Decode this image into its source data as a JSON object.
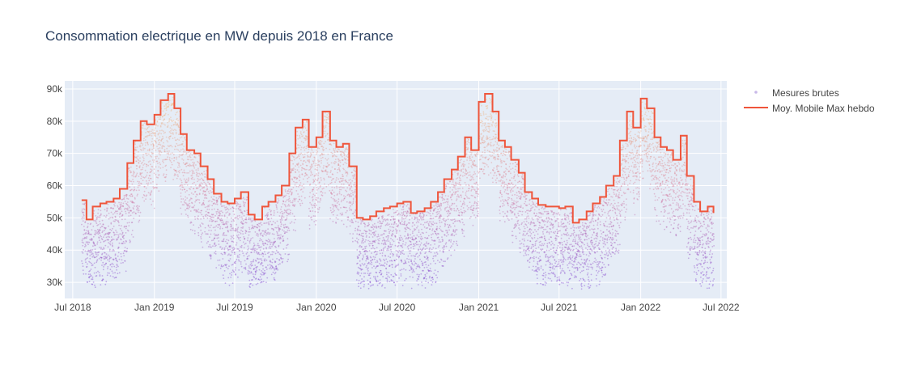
{
  "chart_data": {
    "type": "scatter",
    "title": "Consommation electrique en MW depuis 2018 en France",
    "xlabel": "",
    "ylabel": "",
    "xlim": [
      "2018-06-13",
      "2022-07-14"
    ],
    "ylim": [
      25000,
      92500
    ],
    "x_ticks": [
      {
        "date": "2018-07-01",
        "label": "Jul 2018"
      },
      {
        "date": "2019-01-01",
        "label": "Jan 2019"
      },
      {
        "date": "2019-07-01",
        "label": "Jul 2019"
      },
      {
        "date": "2020-01-01",
        "label": "Jan 2020"
      },
      {
        "date": "2020-07-01",
        "label": "Jul 2020"
      },
      {
        "date": "2021-01-01",
        "label": "Jan 2021"
      },
      {
        "date": "2021-07-01",
        "label": "Jul 2021"
      },
      {
        "date": "2022-01-01",
        "label": "Jan 2022"
      },
      {
        "date": "2022-07-01",
        "label": "Jul 2022"
      }
    ],
    "y_ticks": [
      {
        "value": 30000,
        "label": "30k"
      },
      {
        "value": 40000,
        "label": "40k"
      },
      {
        "value": 50000,
        "label": "50k"
      },
      {
        "value": 60000,
        "label": "60k"
      },
      {
        "value": 70000,
        "label": "70k"
      },
      {
        "value": 80000,
        "label": "80k"
      },
      {
        "value": 90000,
        "label": "90k"
      }
    ],
    "grid": true,
    "legend_position": "right",
    "colors": {
      "plot_background": "#e5ecf6",
      "grid": "#ffffff",
      "line": "#ef553b",
      "scatter_low": "#7a3fd1",
      "scatter_mid": "#d87a9a",
      "scatter_high": "#f2c27a",
      "text": "#444444",
      "title": "#2a3f5f"
    },
    "series": [
      {
        "name": "Mesures brutes",
        "mode": "markers",
        "x_range": [
          "2018-07-21",
          "2022-06-14"
        ],
        "y_min_range": [
          29000,
          70000
        ],
        "y_max_range": [
          52000,
          88000
        ]
      },
      {
        "name": "Moy. Mobile Max hebdo",
        "mode": "lines",
        "shape": "step",
        "points": [
          [
            "2018-07-21",
            55500
          ],
          [
            "2018-08-01",
            49500
          ],
          [
            "2018-08-15",
            53500
          ],
          [
            "2018-09-01",
            54500
          ],
          [
            "2018-09-15",
            55000
          ],
          [
            "2018-10-01",
            56000
          ],
          [
            "2018-10-15",
            59000
          ],
          [
            "2018-11-01",
            67000
          ],
          [
            "2018-11-15",
            74000
          ],
          [
            "2018-12-01",
            80000
          ],
          [
            "2018-12-15",
            79000
          ],
          [
            "2019-01-01",
            82000
          ],
          [
            "2019-01-15",
            86500
          ],
          [
            "2019-02-01",
            88500
          ],
          [
            "2019-02-15",
            84000
          ],
          [
            "2019-03-01",
            76000
          ],
          [
            "2019-03-15",
            71000
          ],
          [
            "2019-04-01",
            70000
          ],
          [
            "2019-04-15",
            66000
          ],
          [
            "2019-05-01",
            62000
          ],
          [
            "2019-05-15",
            57500
          ],
          [
            "2019-06-01",
            55000
          ],
          [
            "2019-06-15",
            54500
          ],
          [
            "2019-07-01",
            56000
          ],
          [
            "2019-07-15",
            58000
          ],
          [
            "2019-08-01",
            51000
          ],
          [
            "2019-08-15",
            49500
          ],
          [
            "2019-09-01",
            53500
          ],
          [
            "2019-09-15",
            55000
          ],
          [
            "2019-10-01",
            57000
          ],
          [
            "2019-10-15",
            60000
          ],
          [
            "2019-11-01",
            70000
          ],
          [
            "2019-11-15",
            78000
          ],
          [
            "2019-12-01",
            80500
          ],
          [
            "2019-12-15",
            72000
          ],
          [
            "2020-01-01",
            75000
          ],
          [
            "2020-01-15",
            83000
          ],
          [
            "2020-02-01",
            74000
          ],
          [
            "2020-02-15",
            72000
          ],
          [
            "2020-03-01",
            73000
          ],
          [
            "2020-03-15",
            66000
          ],
          [
            "2020-04-01",
            50000
          ],
          [
            "2020-04-15",
            49500
          ],
          [
            "2020-05-01",
            50500
          ],
          [
            "2020-05-15",
            52000
          ],
          [
            "2020-06-01",
            53000
          ],
          [
            "2020-06-15",
            53500
          ],
          [
            "2020-07-01",
            54500
          ],
          [
            "2020-07-15",
            55000
          ],
          [
            "2020-08-01",
            51500
          ],
          [
            "2020-08-15",
            52000
          ],
          [
            "2020-09-01",
            53000
          ],
          [
            "2020-09-15",
            55000
          ],
          [
            "2020-10-01",
            58000
          ],
          [
            "2020-10-15",
            62000
          ],
          [
            "2020-11-01",
            65000
          ],
          [
            "2020-11-15",
            69000
          ],
          [
            "2020-12-01",
            75000
          ],
          [
            "2020-12-15",
            71000
          ],
          [
            "2021-01-01",
            86000
          ],
          [
            "2021-01-15",
            88500
          ],
          [
            "2021-02-01",
            83000
          ],
          [
            "2021-02-15",
            74000
          ],
          [
            "2021-03-01",
            72000
          ],
          [
            "2021-03-15",
            68000
          ],
          [
            "2021-04-01",
            64000
          ],
          [
            "2021-04-15",
            58000
          ],
          [
            "2021-05-01",
            56000
          ],
          [
            "2021-05-15",
            54000
          ],
          [
            "2021-06-01",
            53500
          ],
          [
            "2021-06-15",
            53500
          ],
          [
            "2021-07-01",
            53000
          ],
          [
            "2021-07-15",
            53500
          ],
          [
            "2021-08-01",
            48500
          ],
          [
            "2021-08-15",
            49500
          ],
          [
            "2021-09-01",
            52000
          ],
          [
            "2021-09-15",
            54500
          ],
          [
            "2021-10-01",
            56500
          ],
          [
            "2021-10-15",
            60000
          ],
          [
            "2021-11-01",
            63000
          ],
          [
            "2021-11-15",
            74000
          ],
          [
            "2021-12-01",
            83000
          ],
          [
            "2021-12-15",
            78000
          ],
          [
            "2022-01-01",
            87000
          ],
          [
            "2022-01-15",
            84000
          ],
          [
            "2022-02-01",
            75000
          ],
          [
            "2022-02-15",
            72000
          ],
          [
            "2022-03-01",
            71000
          ],
          [
            "2022-03-15",
            68000
          ],
          [
            "2022-04-01",
            75500
          ],
          [
            "2022-04-15",
            63000
          ],
          [
            "2022-05-01",
            55000
          ],
          [
            "2022-05-15",
            52000
          ],
          [
            "2022-06-01",
            53500
          ],
          [
            "2022-06-14",
            51500
          ]
        ]
      }
    ]
  }
}
